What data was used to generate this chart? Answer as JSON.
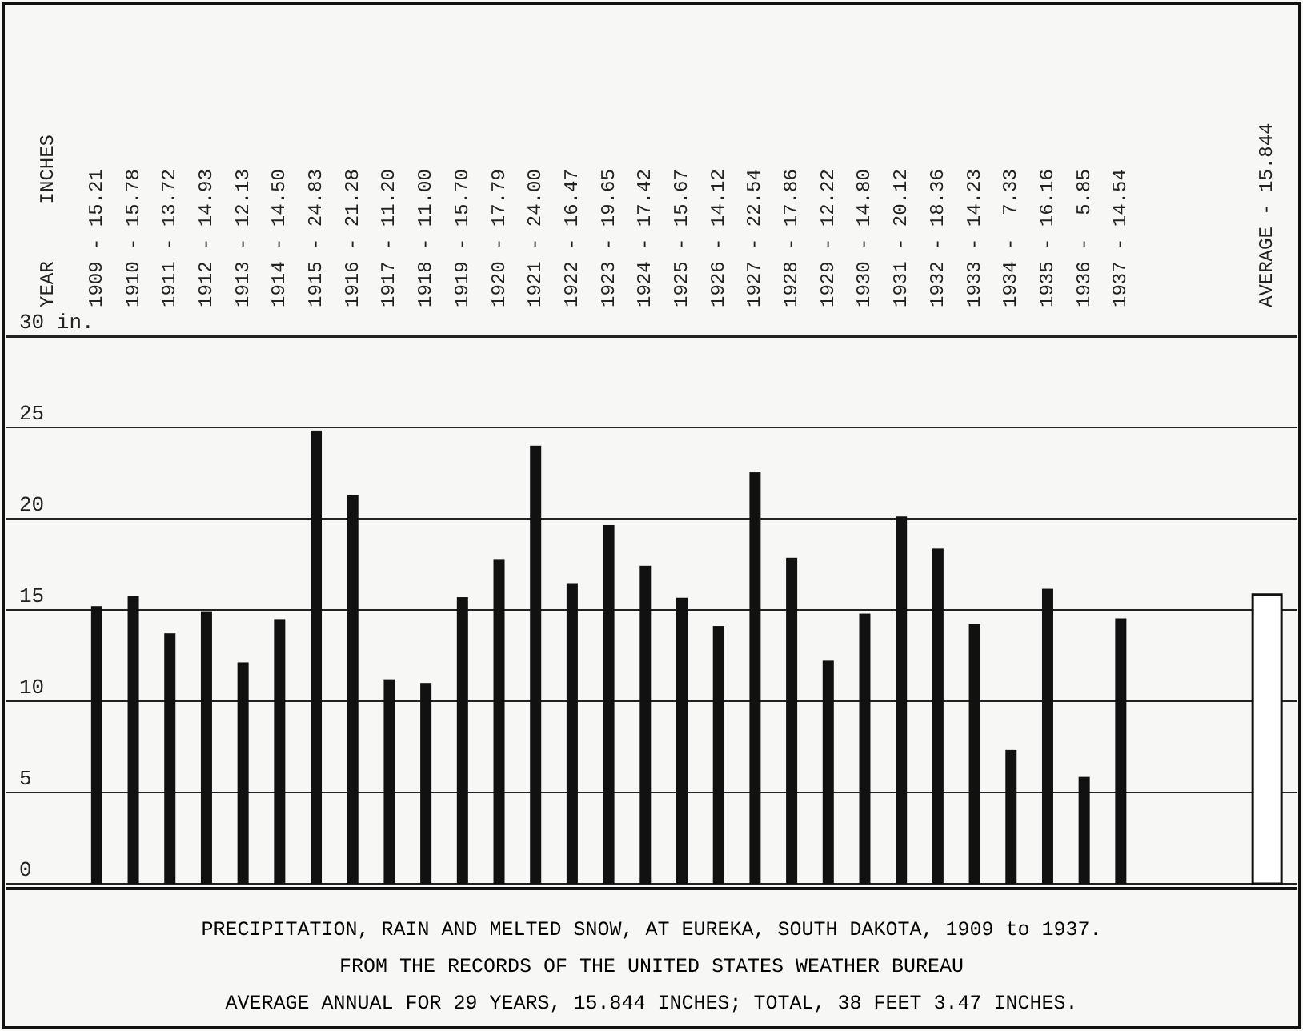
{
  "chart_data": {
    "type": "bar",
    "title": "PRECIPITATION, RAIN AND MELTED SNOW, AT EUREKA, SOUTH DAKOTA, 1909 to 1937.",
    "subtitle": "FROM THE RECORDS OF THE UNITED STATES WEATHER BUREAU",
    "annotations": [
      "YEAR",
      "INCHES",
      "AVERAGE ANNUAL FOR 29 YEARS, 15.844 INCHES; TOTAL, 38 FEET 3.47 INCHES."
    ],
    "categories": [
      "1909 - 15.21",
      "1910 - 15.78",
      "1911 - 13.72",
      "1912 - 14.93",
      "1913 - 12.13",
      "1914 - 14.50",
      "1915 - 24.83",
      "1916 - 21.28",
      "1917 - 11.20",
      "1918 - 11.00",
      "1919 - 15.70",
      "1920 - 17.79",
      "1921 - 24.00",
      "1922 - 16.47",
      "1923 - 19.65",
      "1924 - 17.42",
      "1925 - 15.67",
      "1926 - 14.12",
      "1927 - 22.54",
      "1928 - 17.86",
      "1929 - 12.22",
      "1930 - 14.80",
      "1931 - 20.12",
      "1932 - 18.36",
      "1933 - 14.23",
      "1934 -  7.33",
      "1935 - 16.16",
      "1936 -  5.85",
      "1937 - 14.54",
      null,
      null,
      null,
      "AVERAGE - 15.844"
    ],
    "values": [
      15.21,
      15.78,
      13.72,
      14.93,
      12.13,
      14.5,
      24.83,
      21.28,
      11.2,
      11.0,
      15.7,
      17.79,
      24.0,
      16.47,
      19.65,
      17.42,
      15.67,
      14.12,
      22.54,
      17.86,
      12.22,
      14.8,
      20.12,
      18.36,
      14.23,
      7.33,
      16.16,
      5.85,
      14.54,
      null,
      null,
      null,
      15.844
    ],
    "colors": [
      "#111111",
      "#111111",
      "#111111",
      "#111111",
      "#111111",
      "#111111",
      "#111111",
      "#111111",
      "#111111",
      "#111111",
      "#111111",
      "#111111",
      "#111111",
      "#111111",
      "#111111",
      "#111111",
      "#111111",
      "#111111",
      "#111111",
      "#111111",
      "#111111",
      "#111111",
      "#111111",
      "#111111",
      "#111111",
      "#111111",
      "#111111",
      "#111111",
      "#111111",
      null,
      null,
      null,
      "#ffffff"
    ],
    "ylim": [
      0,
      30
    ],
    "yticks": [
      0,
      5,
      10,
      15,
      20,
      25,
      {
        "value": 30,
        "label": "30 in."
      }
    ],
    "grid": "y"
  }
}
